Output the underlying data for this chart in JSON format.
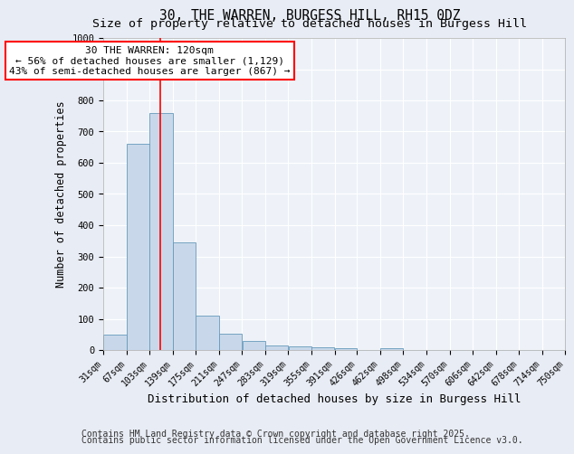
{
  "title1": "30, THE WARREN, BURGESS HILL, RH15 0DZ",
  "title2": "Size of property relative to detached houses in Burgess Hill",
  "xlabel": "Distribution of detached houses by size in Burgess Hill",
  "ylabel": "Number of detached properties",
  "bin_edges": [
    31,
    67,
    103,
    139,
    175,
    211,
    247,
    283,
    319,
    355,
    391,
    426,
    462,
    498,
    534,
    570,
    606,
    642,
    678,
    714,
    750
  ],
  "bar_heights": [
    50,
    660,
    760,
    345,
    110,
    52,
    30,
    15,
    12,
    8,
    5,
    0,
    5,
    0,
    0,
    0,
    0,
    0,
    0,
    0
  ],
  "bar_color": "#c8d8ea",
  "bar_edge_color": "#6699bb",
  "vline_x": 120,
  "vline_color": "red",
  "annotation_text": "30 THE WARREN: 120sqm\n← 56% of detached houses are smaller (1,129)\n43% of semi-detached houses are larger (867) →",
  "annotation_box_color": "white",
  "annotation_box_edge_color": "red",
  "ylim": [
    0,
    1000
  ],
  "yticks": [
    0,
    100,
    200,
    300,
    400,
    500,
    600,
    700,
    800,
    900,
    1000
  ],
  "tick_labels": [
    "31sqm",
    "67sqm",
    "103sqm",
    "139sqm",
    "175sqm",
    "211sqm",
    "247sqm",
    "283sqm",
    "319sqm",
    "355sqm",
    "391sqm",
    "426sqm",
    "462sqm",
    "498sqm",
    "534sqm",
    "570sqm",
    "606sqm",
    "642sqm",
    "678sqm",
    "714sqm",
    "750sqm"
  ],
  "footer1": "Contains HM Land Registry data © Crown copyright and database right 2025.",
  "footer2": "Contains public sector information licensed under the Open Government Licence v3.0.",
  "bg_color": "#e8ecf4",
  "plot_bg_color": "#eef2f8",
  "grid_color": "white",
  "title_fontsize": 10.5,
  "subtitle_fontsize": 9.5,
  "tick_fontsize": 7,
  "ylabel_fontsize": 8.5,
  "xlabel_fontsize": 9,
  "footer_fontsize": 7,
  "annotation_fontsize": 8
}
